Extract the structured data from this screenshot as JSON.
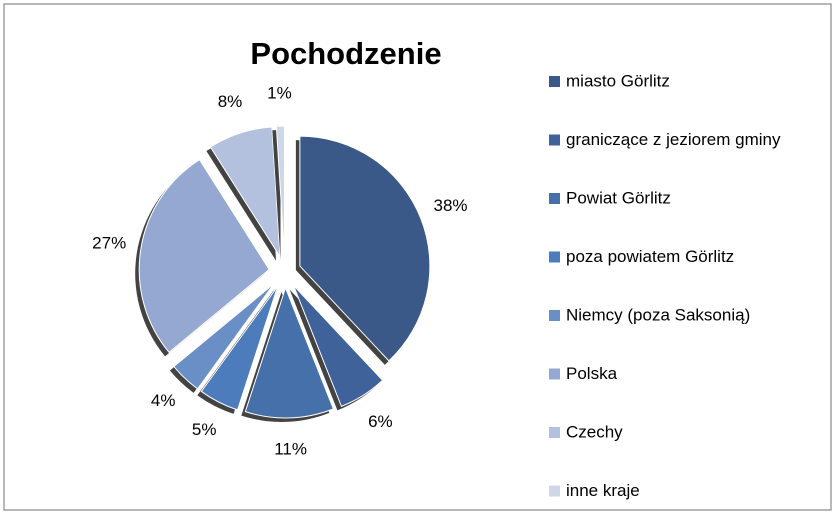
{
  "chart_data": {
    "type": "pie",
    "title": "Pochodzenie",
    "categories": [
      "miasto Görlitz",
      "graniczące z jeziorem gminy",
      "Powiat Görlitz",
      "poza powiatem Görlitz",
      "Niemcy (poza Saksonią)",
      "Polska",
      "Czechy",
      "inne kraje"
    ],
    "values": [
      38,
      6,
      11,
      5,
      4,
      27,
      8,
      1
    ],
    "value_labels": [
      "38%",
      "6%",
      "11%",
      "5%",
      "4%",
      "27%",
      "8%",
      "1%"
    ],
    "colors": [
      "#3a5888",
      "#40629a",
      "#4570aa",
      "#4d7cbd",
      "#6a8ec6",
      "#94a8d1",
      "#b3c1de",
      "#ced7ea"
    ],
    "legend": "right"
  }
}
